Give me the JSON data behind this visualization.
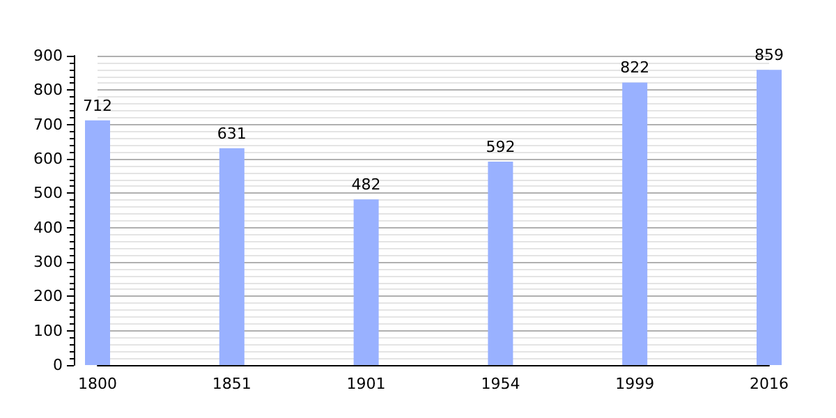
{
  "chart_data": {
    "type": "bar",
    "categories": [
      "1800",
      "1851",
      "1901",
      "1954",
      "1999",
      "2016"
    ],
    "values": [
      712,
      631,
      482,
      592,
      822,
      859
    ],
    "color": "#99b1ff",
    "ylim": [
      0,
      900
    ],
    "yticks": [
      0,
      100,
      200,
      300,
      400,
      500,
      600,
      700,
      800,
      900
    ],
    "grid": "y",
    "data_labels": true
  }
}
